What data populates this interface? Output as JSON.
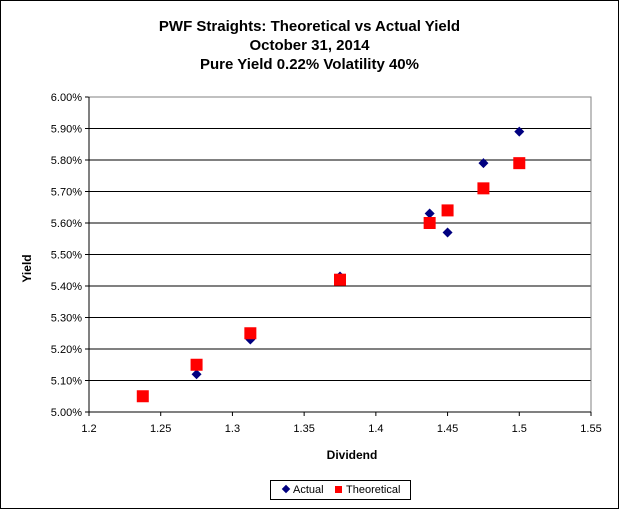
{
  "chart_data": {
    "type": "scatter",
    "title_lines": [
      "PWF Straights: Theoretical vs Actual Yield",
      "October 31, 2014",
      "Pure Yield 0.22% Volatility 40%"
    ],
    "xlabel": "Dividend",
    "ylabel": "Yield",
    "xlim": [
      1.2,
      1.55
    ],
    "ylim": [
      5.0,
      6.0
    ],
    "x_ticks": [
      "1.2",
      "1.25",
      "1.3",
      "1.35",
      "1.4",
      "1.45",
      "1.5",
      "1.55"
    ],
    "y_ticks": [
      "5.00%",
      "5.10%",
      "5.20%",
      "5.30%",
      "5.40%",
      "5.50%",
      "5.60%",
      "5.70%",
      "5.80%",
      "5.90%",
      "6.00%"
    ],
    "grid": "horizontal",
    "legend_position": "bottom",
    "series": [
      {
        "name": "Actual",
        "marker": "diamond",
        "color": "#000080",
        "points": [
          [
            1.2375,
            5.05
          ],
          [
            1.275,
            5.12
          ],
          [
            1.3125,
            5.23
          ],
          [
            1.375,
            5.43
          ],
          [
            1.4375,
            5.63
          ],
          [
            1.45,
            5.57
          ],
          [
            1.475,
            5.79
          ],
          [
            1.5,
            5.89
          ]
        ]
      },
      {
        "name": "Theoretical",
        "marker": "square",
        "color": "#ff0000",
        "points": [
          [
            1.2375,
            5.05
          ],
          [
            1.275,
            5.15
          ],
          [
            1.3125,
            5.25
          ],
          [
            1.375,
            5.42
          ],
          [
            1.4375,
            5.6
          ],
          [
            1.45,
            5.64
          ],
          [
            1.475,
            5.71
          ],
          [
            1.5,
            5.79
          ]
        ]
      }
    ]
  }
}
